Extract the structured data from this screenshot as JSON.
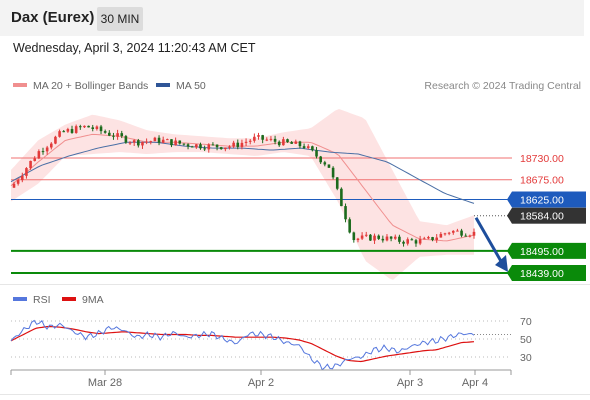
{
  "header": {
    "instrument": "Dax (Eurex)",
    "timeframe": "30 MIN"
  },
  "timestamp": "Wednesday, April 3, 2024 11:20:43 AM CET",
  "legend": {
    "ma20_label": "MA 20 + Bollinger Bands",
    "ma50_label": "MA 50",
    "copyright": "Research © 2024 Trading Central"
  },
  "colors": {
    "up_candle": "#e23a3a",
    "down_candle": "#1c6a1c",
    "bollinger_fill": "#fde3e3",
    "ma20": "#f08f8f",
    "ma50": "#4a6fa5",
    "resistance": "#f07070",
    "pivot": "#1e5bbd",
    "support": "#0a8a0a",
    "rsi": "#5577dd",
    "rsi_ma": "#dd1111"
  },
  "chart_data": [
    {
      "type": "candlestick",
      "title": "Dax (Eurex)",
      "timeframe": "30 MIN",
      "x_ticks": [
        "Mar 28",
        "Apr 2",
        "Apr 3",
        "Apr 4"
      ],
      "ylim": [
        18400,
        18800
      ],
      "levels": [
        {
          "value": 18730.0,
          "label": "18730.00",
          "kind": "resistance"
        },
        {
          "value": 18675.0,
          "label": "18675.00",
          "kind": "resistance"
        },
        {
          "value": 18625.0,
          "label": "18625.00",
          "kind": "pivot"
        },
        {
          "value": 18495.0,
          "label": "18495.00",
          "kind": "support"
        },
        {
          "value": 18439.0,
          "label": "18439.00",
          "kind": "support"
        }
      ],
      "last_price": {
        "value": 18584.0,
        "label": "18584.00"
      },
      "forecast_arrow": {
        "from": 18584,
        "to": 18439,
        "direction": "down"
      },
      "series": [
        {
          "name": "MA 20 + Bollinger Bands"
        },
        {
          "name": "MA 50"
        }
      ],
      "close_anchors": [
        18665,
        18745,
        18795,
        18810,
        18790,
        18770,
        18775,
        18765,
        18760,
        18760,
        18780,
        18770,
        18760,
        18710,
        18525,
        18530,
        18520,
        18520,
        18545,
        18540
      ],
      "ma50_anchors": [
        18670,
        18710,
        18735,
        18755,
        18770,
        18770,
        18760,
        18755,
        18755,
        18750,
        18755,
        18745,
        18740,
        18720,
        18680,
        18640,
        18615
      ],
      "ma20_anchors": [
        18660,
        18720,
        18775,
        18790,
        18785,
        18770,
        18770,
        18765,
        18760,
        18760,
        18770,
        18770,
        18740,
        18650,
        18560,
        18525,
        18520,
        18535
      ],
      "bb_upper_anchors": [
        18700,
        18775,
        18815,
        18840,
        18825,
        18800,
        18790,
        18785,
        18780,
        18780,
        18795,
        18805,
        18855,
        18830,
        18700,
        18570,
        18560,
        18585
      ],
      "bb_lower_anchors": [
        18620,
        18665,
        18735,
        18740,
        18745,
        18740,
        18745,
        18745,
        18740,
        18735,
        18745,
        18735,
        18620,
        18470,
        18420,
        18480,
        18485,
        18485
      ]
    },
    {
      "type": "line",
      "title": "RSI",
      "y_ticks": [
        70,
        50,
        30
      ],
      "ylim": [
        15,
        85
      ],
      "series": [
        {
          "name": "RSI",
          "values": [
            48,
            60,
            70,
            63,
            66,
            58,
            52,
            56,
            63,
            60,
            52,
            55,
            52,
            57,
            52,
            54,
            56,
            50,
            45,
            56,
            55,
            52,
            46,
            43,
            28,
            18,
            20,
            28,
            30,
            38,
            40,
            36,
            42,
            46,
            48,
            52,
            56,
            55
          ]
        },
        {
          "name": "9MA",
          "values": [
            48,
            55,
            62,
            64,
            63,
            61,
            58,
            56,
            57,
            58,
            57,
            56,
            55,
            55,
            55,
            54,
            54,
            53,
            52,
            52,
            52,
            52,
            51,
            49,
            45,
            38,
            31,
            26,
            25,
            28,
            31,
            33,
            35,
            37,
            38,
            42,
            46,
            47
          ]
        }
      ]
    }
  ]
}
